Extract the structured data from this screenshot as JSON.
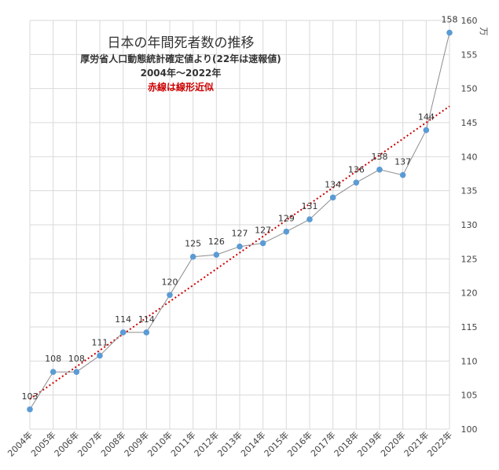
{
  "chart_data": {
    "type": "line",
    "title": "日本の年間死者数の推移",
    "subtitle": "厚労省人口動態統計確定値より(22年は速報値)",
    "period": "2004年～2022年",
    "note": "赤線は線形近似",
    "unit": "万",
    "categories": [
      "2004年",
      "2005年",
      "2006年",
      "2007年",
      "2008年",
      "2009年",
      "2010年",
      "2011年",
      "2012年",
      "2013年",
      "2014年",
      "2015年",
      "2016年",
      "2017年",
      "2018年",
      "2019年",
      "2020年",
      "2021年",
      "2022年"
    ],
    "values": [
      102.9,
      108.4,
      108.4,
      110.8,
      114.2,
      114.2,
      119.7,
      125.3,
      125.6,
      126.8,
      127.3,
      129.0,
      130.8,
      134.0,
      136.2,
      138.1,
      137.3,
      143.9,
      158.2
    ],
    "labels": [
      "103",
      "108",
      "108",
      "111",
      "114",
      "114",
      "120",
      "125",
      "126",
      "127",
      "127",
      "129",
      "131",
      "134",
      "136",
      "138",
      "137",
      "144",
      "158"
    ],
    "ylim": [
      100,
      160
    ],
    "yticks": [
      "100",
      "105",
      "110",
      "115",
      "120",
      "125",
      "130",
      "135",
      "140",
      "145",
      "150",
      "155",
      "160"
    ],
    "trendline": {
      "name": "線形近似",
      "start": 104.4,
      "end": 147.4,
      "color": "#cc0000"
    },
    "series_color": "#5b9bd5",
    "line_color": "#8c8c8c",
    "grid": true
  }
}
